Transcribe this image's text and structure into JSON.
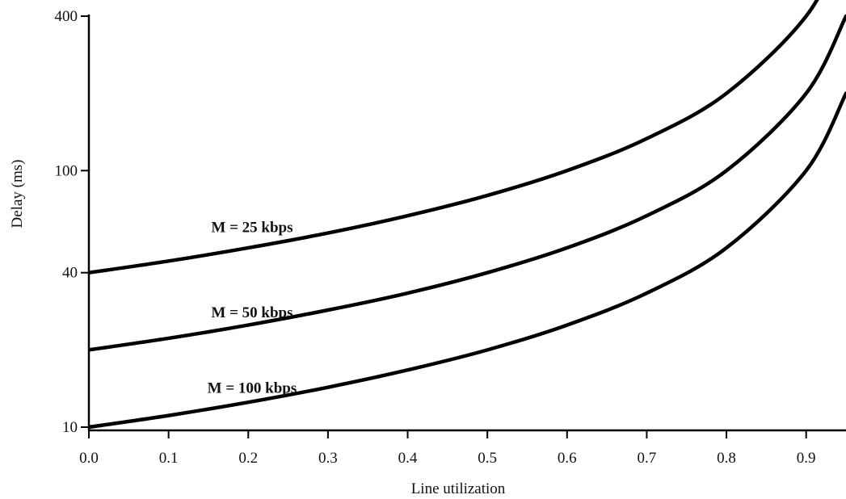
{
  "chart_data": {
    "type": "line",
    "xlabel": "Line utilization",
    "ylabel": "Delay (ms)",
    "yscale": "log",
    "xlim": [
      0,
      0.95
    ],
    "ylim": [
      10,
      400
    ],
    "grid": false,
    "x_ticks": [
      "0.0",
      "0.1",
      "0.2",
      "0.3",
      "0.4",
      "0.5",
      "0.6",
      "0.7",
      "0.8",
      "0.9"
    ],
    "y_ticks": [
      "10",
      "40",
      "100",
      "400"
    ],
    "series": [
      {
        "name": "M = 25 kbps",
        "x": [
          0,
          0.1,
          0.2,
          0.3,
          0.4,
          0.5,
          0.6,
          0.7,
          0.8,
          0.9,
          0.95
        ],
        "values": [
          40,
          44.4,
          50,
          57.1,
          66.7,
          80,
          100,
          133.3,
          200,
          400,
          800
        ]
      },
      {
        "name": "M = 50 kbps",
        "x": [
          0,
          0.1,
          0.2,
          0.3,
          0.4,
          0.5,
          0.6,
          0.7,
          0.8,
          0.9,
          0.95
        ],
        "values": [
          20,
          22.2,
          25,
          28.6,
          33.3,
          40,
          50,
          66.7,
          100,
          200,
          400
        ]
      },
      {
        "name": "M = 100 kbps",
        "x": [
          0,
          0.1,
          0.2,
          0.3,
          0.4,
          0.5,
          0.6,
          0.7,
          0.8,
          0.9,
          0.95
        ],
        "values": [
          10,
          11.1,
          12.5,
          14.3,
          16.7,
          20,
          25,
          33.3,
          50,
          100,
          200
        ]
      }
    ]
  }
}
